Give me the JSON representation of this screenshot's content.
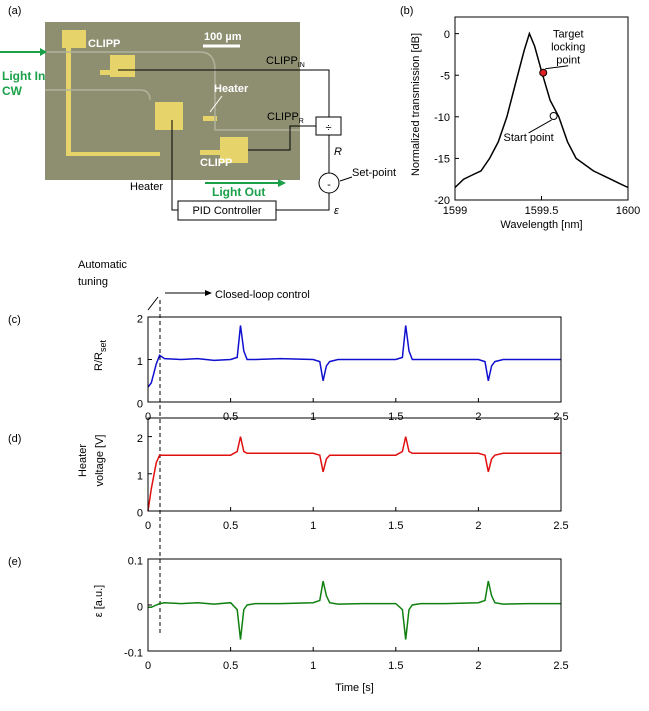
{
  "diagram": {
    "panel_label": "(a)",
    "clipp_top": "CLIPP",
    "scale_bar": "100 µm",
    "light_in": "Light In",
    "light_in_sub": "CW",
    "heater_chip": "Heater",
    "clipp_in": "CLIPP",
    "clipp_in_sub": "IN",
    "clipp_r": "CLIPP",
    "clipp_r_sub": "R",
    "divide": "÷",
    "ratio": "R",
    "minus": "-",
    "setpoint": "Set-point",
    "error": "ε",
    "clipp_bottom": "CLIPP",
    "light_out": "Light Out",
    "heater": "Heater",
    "pid": "PID Controller"
  },
  "chart_data": [
    {
      "type": "line",
      "panel_label": "(b)",
      "xlabel": "Wavelength [nm]",
      "ylabel": "Normalized transmission [dB]",
      "xlim": [
        1599,
        1600
      ],
      "xticks": [
        1599,
        1599.5,
        1600
      ],
      "ylim": [
        -20,
        2
      ],
      "yticks": [
        0,
        -5,
        -10,
        -15,
        -20
      ],
      "x": [
        1599,
        1599.05,
        1599.1,
        1599.15,
        1599.2,
        1599.25,
        1599.3,
        1599.35,
        1599.4,
        1599.43,
        1599.46,
        1599.5,
        1599.55,
        1599.6,
        1599.65,
        1599.7,
        1599.8,
        1599.9,
        1599.95,
        1600
      ],
      "series": [
        {
          "color": "#000000",
          "values": [
            -18.5,
            -17.5,
            -17,
            -16.5,
            -15,
            -13,
            -10,
            -6,
            -2,
            0,
            -1.5,
            -4.5,
            -8,
            -10,
            -13,
            -15,
            -16.5,
            -17.5,
            -18,
            -18.5
          ]
        }
      ],
      "markers": [
        {
          "label": [
            "Target",
            "locking",
            "point"
          ],
          "x": 1599.51,
          "y": -4.7,
          "color": "#e02020"
        },
        {
          "label": [
            "Start point"
          ],
          "x": 1599.57,
          "y": -9.9,
          "color": "#ffffff"
        }
      ]
    },
    {
      "type": "line",
      "panel_label": "(c)",
      "annotation_left": [
        "Automatic",
        "tuning"
      ],
      "annotation_right": "Closed-loop control",
      "ylabel": "R/R",
      "ylabel_sub": "set",
      "xlim": [
        0,
        2.5
      ],
      "xticks": [
        0,
        0.5,
        1,
        1.5,
        2,
        2.5
      ],
      "ylim": [
        0,
        2
      ],
      "yticks": [
        0,
        1,
        2
      ],
      "x": [
        0,
        0.02,
        0.05,
        0.07,
        0.1,
        0.2,
        0.3,
        0.4,
        0.5,
        0.54,
        0.56,
        0.58,
        0.6,
        0.65,
        0.8,
        1.0,
        1.04,
        1.06,
        1.08,
        1.1,
        1.15,
        1.3,
        1.5,
        1.54,
        1.56,
        1.58,
        1.6,
        1.65,
        1.8,
        2.0,
        2.04,
        2.06,
        2.08,
        2.1,
        2.15,
        2.3,
        2.5
      ],
      "series": [
        {
          "color": "#1010d0",
          "values": [
            0.35,
            0.45,
            0.9,
            1.1,
            1.02,
            1.0,
            1.02,
            0.98,
            1.0,
            1.05,
            1.8,
            1.2,
            1.0,
            1.0,
            1.02,
            1.0,
            0.95,
            0.5,
            0.85,
            0.95,
            1.0,
            1.0,
            1.0,
            1.05,
            1.8,
            1.2,
            1.0,
            1.0,
            1.0,
            1.0,
            0.95,
            0.5,
            0.85,
            0.95,
            1.0,
            1.0,
            1.0
          ]
        }
      ]
    },
    {
      "type": "line",
      "panel_label": "(d)",
      "ylabel": [
        "Heater",
        "voltage [V]"
      ],
      "xlim": [
        0,
        2.5
      ],
      "xticks": [
        0,
        0.5,
        1,
        1.5,
        2,
        2.5
      ],
      "ylim": [
        0,
        2.5
      ],
      "yticks": [
        0,
        1,
        2
      ],
      "x": [
        0,
        0.02,
        0.05,
        0.07,
        0.1,
        0.2,
        0.3,
        0.4,
        0.5,
        0.54,
        0.56,
        0.58,
        0.6,
        0.65,
        0.8,
        1.0,
        1.04,
        1.06,
        1.08,
        1.1,
        1.15,
        1.3,
        1.5,
        1.54,
        1.56,
        1.58,
        1.6,
        1.65,
        1.8,
        2.0,
        2.04,
        2.06,
        2.08,
        2.1,
        2.15,
        2.3,
        2.5
      ],
      "series": [
        {
          "color": "#e01010",
          "values": [
            0,
            0.6,
            1.3,
            1.5,
            1.5,
            1.5,
            1.5,
            1.5,
            1.5,
            1.6,
            2.0,
            1.6,
            1.55,
            1.55,
            1.55,
            1.55,
            1.5,
            1.05,
            1.4,
            1.5,
            1.5,
            1.5,
            1.5,
            1.6,
            2.0,
            1.6,
            1.55,
            1.55,
            1.55,
            1.55,
            1.5,
            1.05,
            1.4,
            1.5,
            1.55,
            1.55,
            1.55
          ]
        }
      ]
    },
    {
      "type": "line",
      "panel_label": "(e)",
      "ylabel": "ε [a.u.]",
      "xlabel": "Time [s]",
      "xlim": [
        0,
        2.5
      ],
      "xticks": [
        0,
        0.5,
        1,
        1.5,
        2,
        2.5
      ],
      "ylim": [
        -0.1,
        0.1
      ],
      "yticks": [
        -0.1,
        0,
        0.1
      ],
      "x": [
        0,
        0.02,
        0.05,
        0.07,
        0.1,
        0.2,
        0.3,
        0.4,
        0.5,
        0.54,
        0.56,
        0.58,
        0.6,
        0.65,
        0.8,
        1.0,
        1.04,
        1.06,
        1.08,
        1.1,
        1.15,
        1.3,
        1.5,
        1.54,
        1.56,
        1.58,
        1.6,
        1.65,
        1.8,
        2.0,
        2.04,
        2.06,
        2.08,
        2.1,
        2.15,
        2.3,
        2.5
      ],
      "series": [
        {
          "color": "#108010",
          "values": [
            -0.005,
            -0.005,
            0,
            0.003,
            0.005,
            0.003,
            0.005,
            0.002,
            0.005,
            -0.01,
            -0.075,
            -0.01,
            0,
            0.003,
            0.003,
            0.005,
            0.01,
            0.052,
            0.02,
            0.005,
            0.002,
            0.003,
            0.003,
            -0.01,
            -0.075,
            -0.01,
            0,
            0.003,
            0.003,
            0.005,
            0.01,
            0.052,
            0.02,
            0.005,
            0.002,
            0.003,
            0.003
          ]
        }
      ]
    }
  ]
}
